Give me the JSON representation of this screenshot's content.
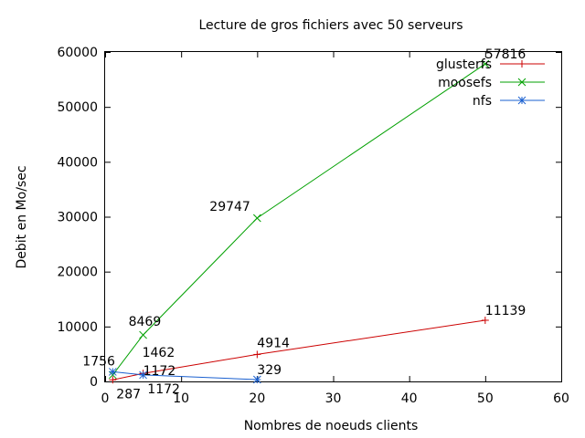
{
  "chart_data": {
    "type": "line",
    "title": "Lecture de gros fichiers avec 50 serveurs",
    "xlabel": "Nombres de noeuds clients",
    "ylabel": "Debit en Mo/sec",
    "xlim": [
      0,
      60
    ],
    "ylim": [
      0,
      60000
    ],
    "xticks": [
      0,
      10,
      20,
      30,
      40,
      50,
      60
    ],
    "yticks": [
      0,
      10000,
      20000,
      30000,
      40000,
      50000,
      60000
    ],
    "grid": false,
    "legend_position": "top-right",
    "series": [
      {
        "name": "glusterfs",
        "color": "#cc0000",
        "marker": "plus",
        "x": [
          1,
          5,
          20,
          50
        ],
        "y": [
          287,
          1462,
          4914,
          11139
        ],
        "labels": [
          "287",
          "1462",
          "4914",
          "11139"
        ]
      },
      {
        "name": "moosefs",
        "color": "#00a000",
        "marker": "cross",
        "x": [
          1,
          5,
          20,
          50
        ],
        "y": [
          1172,
          8469,
          29747,
          57816
        ],
        "labels": [
          "1172",
          "8469",
          "29747",
          "57816"
        ]
      },
      {
        "name": "nfs",
        "color": "#1a60d0",
        "marker": "star",
        "x": [
          1,
          5,
          20
        ],
        "y": [
          1756,
          1172,
          329
        ],
        "labels": [
          "1756",
          "1172",
          "329"
        ]
      }
    ]
  }
}
